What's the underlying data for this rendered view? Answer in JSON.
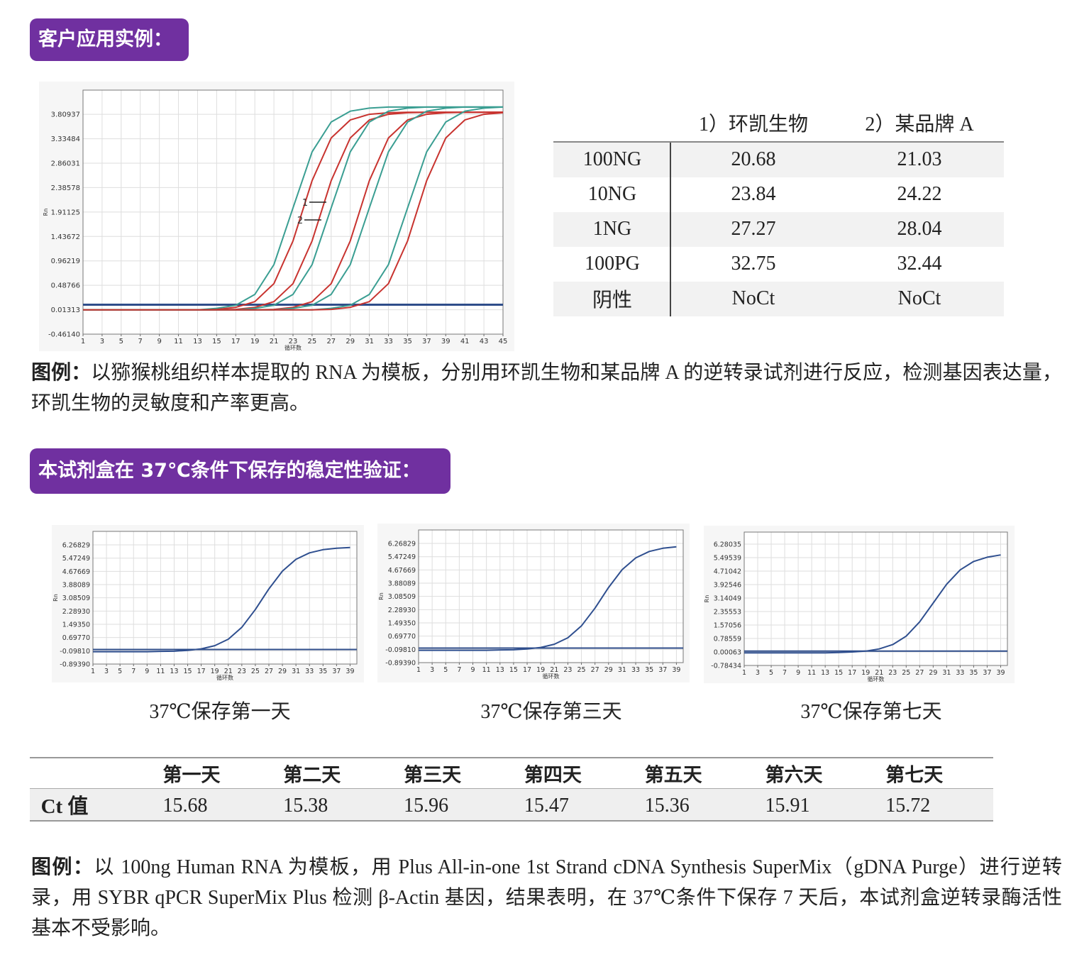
{
  "badge1": "客户应用实例：",
  "badge2": "本试剂盒在 37℃条件下保存的稳定性验证：",
  "chart_data": [
    {
      "type": "line",
      "x_label": "循环数",
      "y_label": "Rn",
      "x": [
        1,
        3,
        5,
        7,
        9,
        11,
        13,
        15,
        17,
        19,
        21,
        23,
        25,
        27,
        29,
        31,
        33,
        35,
        37,
        39,
        41,
        43,
        45
      ],
      "xlim": [
        1,
        45
      ],
      "xticks": [
        1,
        3,
        5,
        7,
        9,
        11,
        13,
        15,
        17,
        19,
        21,
        23,
        25,
        27,
        29,
        31,
        33,
        35,
        37,
        39,
        41,
        43,
        45
      ],
      "ylim": [
        -0.4614,
        4.28
      ],
      "yticks": [
        {
          "value": -0.4614,
          "label": "-0.46140"
        },
        0.01313,
        0.48766,
        0.96219,
        1.43672,
        1.91125,
        2.38578,
        2.86031,
        3.33484,
        3.80937
      ],
      "grid": true,
      "threshold": 0.11,
      "threshold_color": "#2f4d8a",
      "annotations": [
        "1",
        "2"
      ],
      "series": [
        {
          "color": "#3a9e92",
          "values": [
            0.01,
            0.01,
            0.01,
            0.01,
            0.01,
            0.01,
            0.01,
            0.04,
            0.1,
            0.31,
            0.89,
            1.99,
            3.08,
            3.66,
            3.87,
            3.93,
            3.95,
            3.95,
            3.95,
            3.95,
            3.95,
            3.95,
            3.95
          ]
        },
        {
          "color": "#c8332f",
          "values": [
            0.01,
            0.01,
            0.01,
            0.01,
            0.01,
            0.01,
            0.01,
            0.02,
            0.06,
            0.17,
            0.52,
            1.35,
            2.52,
            3.35,
            3.7,
            3.81,
            3.84,
            3.85,
            3.85,
            3.85,
            3.85,
            3.85,
            3.85
          ]
        },
        {
          "color": "#c8332f",
          "values": [
            0.01,
            0.01,
            0.01,
            0.01,
            0.01,
            0.01,
            0.01,
            0.01,
            0.02,
            0.06,
            0.17,
            0.52,
            1.35,
            2.52,
            3.35,
            3.7,
            3.81,
            3.84,
            3.85,
            3.85,
            3.85,
            3.85,
            3.85
          ]
        },
        {
          "color": "#3a9e92",
          "values": [
            0.01,
            0.01,
            0.01,
            0.01,
            0.01,
            0.01,
            0.01,
            0.01,
            0.01,
            0.04,
            0.1,
            0.31,
            0.89,
            1.99,
            3.08,
            3.66,
            3.87,
            3.93,
            3.95,
            3.95,
            3.95,
            3.95,
            3.95
          ]
        },
        {
          "color": "#c8332f",
          "values": [
            0.01,
            0.01,
            0.01,
            0.01,
            0.01,
            0.01,
            0.01,
            0.01,
            0.01,
            0.01,
            0.02,
            0.06,
            0.17,
            0.52,
            1.35,
            2.52,
            3.35,
            3.7,
            3.81,
            3.84,
            3.85,
            3.85,
            3.85
          ]
        },
        {
          "color": "#3a9e92",
          "values": [
            0.01,
            0.01,
            0.01,
            0.01,
            0.01,
            0.01,
            0.01,
            0.01,
            0.01,
            0.01,
            0.01,
            0.04,
            0.1,
            0.31,
            0.89,
            1.99,
            3.08,
            3.66,
            3.87,
            3.93,
            3.95,
            3.95,
            3.95
          ]
        },
        {
          "color": "#3a9e92",
          "values": [
            0.01,
            0.01,
            0.01,
            0.01,
            0.01,
            0.01,
            0.01,
            0.01,
            0.01,
            0.01,
            0.01,
            0.01,
            0.01,
            0.04,
            0.1,
            0.31,
            0.89,
            1.99,
            3.08,
            3.66,
            3.87,
            3.93,
            3.95
          ]
        },
        {
          "color": "#c8332f",
          "values": [
            0.01,
            0.01,
            0.01,
            0.01,
            0.01,
            0.01,
            0.01,
            0.01,
            0.01,
            0.01,
            0.01,
            0.01,
            0.01,
            0.02,
            0.06,
            0.17,
            0.52,
            1.35,
            2.52,
            3.35,
            3.7,
            3.81,
            3.84
          ]
        }
      ]
    },
    {
      "type": "line",
      "title": "37℃保存第一天",
      "x_label": "循环数",
      "y_label": "Rn",
      "x": [
        1,
        3,
        5,
        7,
        9,
        11,
        13,
        15,
        17,
        19,
        21,
        23,
        25,
        27,
        29,
        31,
        33,
        35,
        37,
        39
      ],
      "xlim": [
        1,
        40
      ],
      "xticks": [
        1,
        3,
        5,
        7,
        9,
        11,
        13,
        15,
        17,
        19,
        21,
        23,
        25,
        27,
        29,
        31,
        33,
        35,
        37,
        39
      ],
      "ylim": [
        -0.8939,
        7.08
      ],
      "yticks": [
        {
          "value": -0.8939,
          "label": "-0.89390"
        },
        {
          "value": -0.0981,
          "label": "-0.09810"
        },
        {
          "value": 0.6977,
          "label": "0.69770"
        },
        {
          "value": 1.4935,
          "label": "1.49350"
        },
        {
          "value": 2.2893,
          "label": "2.28930"
        },
        3.08509,
        3.88089,
        4.67669,
        5.47249,
        6.26829
      ],
      "grid": true,
      "threshold": -0.02,
      "threshold_color": "#2f4d8a",
      "series": [
        {
          "color": "#2f4f8f",
          "values": [
            -0.15,
            -0.15,
            -0.15,
            -0.15,
            -0.15,
            -0.13,
            -0.12,
            -0.07,
            0.02,
            0.21,
            0.6,
            1.31,
            2.38,
            3.62,
            4.69,
            5.4,
            5.79,
            5.98,
            6.07,
            6.11
          ]
        }
      ]
    },
    {
      "type": "line",
      "title": "37℃保存第三天",
      "x_label": "循环数",
      "y_label": "Rn",
      "x": [
        1,
        3,
        5,
        7,
        9,
        11,
        13,
        15,
        17,
        19,
        21,
        23,
        25,
        27,
        29,
        31,
        33,
        35,
        37,
        39
      ],
      "xlim": [
        1,
        40
      ],
      "xticks": [
        1,
        3,
        5,
        7,
        9,
        11,
        13,
        15,
        17,
        19,
        21,
        23,
        25,
        27,
        29,
        31,
        33,
        35,
        37,
        39
      ],
      "ylim": [
        -0.8939,
        7.08
      ],
      "yticks": [
        {
          "value": -0.8939,
          "label": "-0.89390"
        },
        {
          "value": -0.0981,
          "label": "-0.09810"
        },
        {
          "value": 0.6977,
          "label": "0.69770"
        },
        {
          "value": 1.4935,
          "label": "1.49350"
        },
        {
          "value": 2.2893,
          "label": "2.28930"
        },
        3.08509,
        3.88089,
        4.67669,
        5.47249,
        6.26829
      ],
      "grid": true,
      "threshold": -0.02,
      "threshold_color": "#2f4d8a",
      "series": [
        {
          "color": "#2f4f8f",
          "values": [
            -0.15,
            -0.15,
            -0.15,
            -0.15,
            -0.15,
            -0.15,
            -0.13,
            -0.12,
            -0.07,
            0.02,
            0.21,
            0.6,
            1.31,
            2.38,
            3.62,
            4.69,
            5.4,
            5.79,
            5.98,
            6.07
          ]
        }
      ]
    },
    {
      "type": "line",
      "title": "37℃保存第七天",
      "x_label": "循环数",
      "y_label": "Rn",
      "x": [
        1,
        3,
        5,
        7,
        9,
        11,
        13,
        15,
        17,
        19,
        21,
        23,
        25,
        27,
        29,
        31,
        33,
        35,
        37,
        39
      ],
      "xlim": [
        1,
        40
      ],
      "xticks": [
        1,
        3,
        5,
        7,
        9,
        11,
        13,
        15,
        17,
        19,
        21,
        23,
        25,
        27,
        29,
        31,
        33,
        35,
        37,
        39
      ],
      "ylim": [
        -0.78434,
        6.98
      ],
      "yticks": [
        -0.78434,
        0.00063,
        0.78559,
        1.57056,
        2.35553,
        3.14049,
        3.92546,
        4.71042,
        5.49539,
        6.28035
      ],
      "grid": true,
      "threshold": 0.05,
      "threshold_color": "#2f4d8a",
      "series": [
        {
          "color": "#2f4f8f",
          "values": [
            -0.05,
            -0.05,
            -0.05,
            -0.05,
            -0.05,
            -0.05,
            -0.05,
            -0.03,
            0.0,
            0.05,
            0.18,
            0.43,
            0.92,
            1.75,
            2.85,
            3.95,
            4.78,
            5.27,
            5.52,
            5.65
          ]
        }
      ]
    }
  ],
  "table1": {
    "header": [
      "1）环凯生物",
      "2）某品牌 A"
    ],
    "rows": [
      [
        "100NG",
        "20.68",
        "21.03"
      ],
      [
        "10NG",
        "23.84",
        "24.22"
      ],
      [
        "1NG",
        "27.27",
        "28.04"
      ],
      [
        "100PG",
        "32.75",
        "32.44"
      ],
      [
        "阴性",
        "NoCt",
        "NoCt"
      ]
    ]
  },
  "caption1": {
    "lead": "图例：",
    "text": "以猕猴桃组织样本提取的 RNA 为模板，分别用环凯生物和某品牌 A 的逆转录试剂进行反应，检测基因表达量，环凯生物的灵敏度和产率更高。"
  },
  "table2": {
    "header": [
      "第一天",
      "第二天",
      "第三天",
      "第四天",
      "第五天",
      "第六天",
      "第七天"
    ],
    "row_label": "Ct 值",
    "values": [
      "15.68",
      "15.38",
      "15.96",
      "15.47",
      "15.36",
      "15.91",
      "15.72"
    ]
  },
  "caption2": {
    "lead": "图例：",
    "text": "以 100ng Human RNA 为模板，用 Plus All-in-one 1st Strand cDNA Synthesis SuperMix（gDNA Purge）进行逆转录，用 SYBR qPCR SuperMix Plus 检测 β-Actin 基因，结果表明，在 37℃条件下保存 7 天后，本试剂盒逆转录酶活性基本不受影响。"
  }
}
